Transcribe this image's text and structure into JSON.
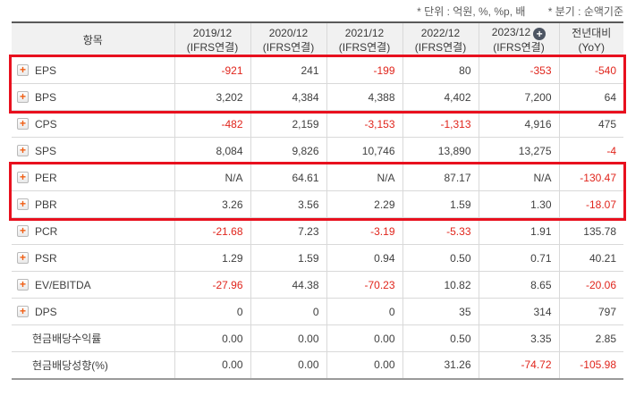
{
  "notes": {
    "unit": "* 단위 : 억원, %, %p, 배",
    "basis": "* 분기 : 순액기준"
  },
  "table": {
    "item_header": "항목",
    "columns": [
      {
        "label": "2019/12",
        "sub": "(IFRS연결)",
        "badge": false
      },
      {
        "label": "2020/12",
        "sub": "(IFRS연결)",
        "badge": false
      },
      {
        "label": "2021/12",
        "sub": "(IFRS연결)",
        "badge": false
      },
      {
        "label": "2022/12",
        "sub": "(IFRS연결)",
        "badge": false
      },
      {
        "label": "2023/12",
        "sub": "(IFRS연결)",
        "badge": true
      },
      {
        "label": "전년대비",
        "sub": "(YoY)",
        "badge": false
      }
    ],
    "rows": [
      {
        "label": "EPS",
        "expandable": true,
        "values": [
          "-921",
          "241",
          "-199",
          "80",
          "-353",
          "-540"
        ]
      },
      {
        "label": "BPS",
        "expandable": true,
        "values": [
          "3,202",
          "4,384",
          "4,388",
          "4,402",
          "7,200",
          "64"
        ]
      },
      {
        "label": "CPS",
        "expandable": true,
        "values": [
          "-482",
          "2,159",
          "-3,153",
          "-1,313",
          "4,916",
          "475"
        ]
      },
      {
        "label": "SPS",
        "expandable": true,
        "values": [
          "8,084",
          "9,826",
          "10,746",
          "13,890",
          "13,275",
          "-4"
        ]
      },
      {
        "label": "PER",
        "expandable": true,
        "values": [
          "N/A",
          "64.61",
          "N/A",
          "87.17",
          "N/A",
          "-130.47"
        ]
      },
      {
        "label": "PBR",
        "expandable": true,
        "values": [
          "3.26",
          "3.56",
          "2.29",
          "1.59",
          "1.30",
          "-18.07"
        ]
      },
      {
        "label": "PCR",
        "expandable": true,
        "values": [
          "-21.68",
          "7.23",
          "-3.19",
          "-5.33",
          "1.91",
          "135.78"
        ]
      },
      {
        "label": "PSR",
        "expandable": true,
        "values": [
          "1.29",
          "1.59",
          "0.94",
          "0.50",
          "0.71",
          "40.21"
        ]
      },
      {
        "label": "EV/EBITDA",
        "expandable": true,
        "values": [
          "-27.96",
          "44.38",
          "-70.23",
          "10.82",
          "8.65",
          "-20.06"
        ]
      },
      {
        "label": "DPS",
        "expandable": true,
        "values": [
          "0",
          "0",
          "0",
          "35",
          "314",
          "797"
        ]
      },
      {
        "label": "현금배당수익률",
        "expandable": false,
        "values": [
          "0.00",
          "0.00",
          "0.00",
          "0.50",
          "3.35",
          "2.85"
        ]
      },
      {
        "label": "현금배당성향(%)",
        "expandable": false,
        "values": [
          "0.00",
          "0.00",
          "0.00",
          "31.26",
          "-74.72",
          "-105.98"
        ]
      }
    ],
    "highlights": [
      {
        "rows": [
          0,
          1
        ]
      },
      {
        "rows": [
          4,
          5
        ]
      }
    ]
  },
  "colors": {
    "negative_text": "#e0251c",
    "highlight_border": "#e8101e",
    "plus_icon": "#f05e14",
    "add_badge_bg": "#4d5563",
    "header_bg": "#f1f1f1"
  }
}
